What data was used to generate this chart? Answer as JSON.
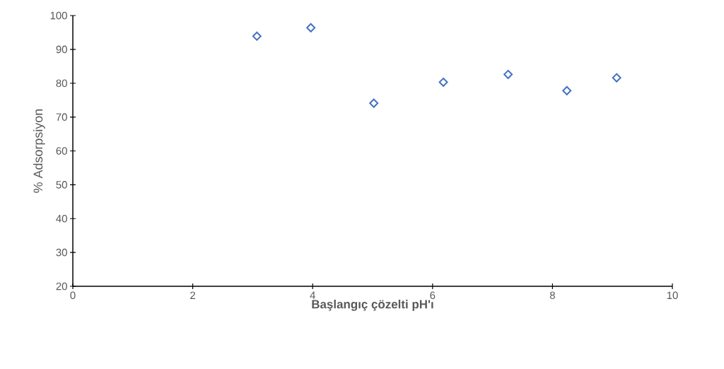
{
  "chart_data": {
    "type": "scatter",
    "xlabel": "Başlangıç çözelti pH'ı",
    "ylabel": "% Adsorpsiyon",
    "x": [
      3.07,
      3.97,
      5.02,
      6.18,
      7.26,
      8.24,
      9.07
    ],
    "values": [
      93.9,
      96.4,
      74.1,
      80.3,
      82.6,
      77.8,
      81.6
    ],
    "color": "#4472c4",
    "marker": "diamond",
    "xlim": [
      0,
      10
    ],
    "xticks": [
      0,
      2,
      4,
      6,
      8,
      10
    ],
    "ylim": [
      20,
      100
    ],
    "yticks": [
      20,
      30,
      40,
      50,
      60,
      70,
      80,
      90,
      100
    ],
    "grid": false
  }
}
